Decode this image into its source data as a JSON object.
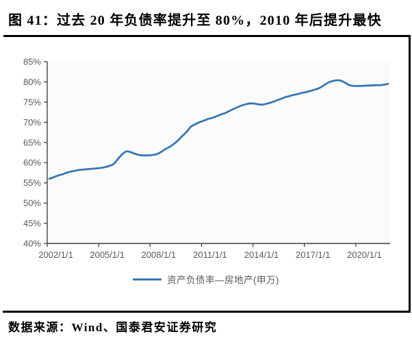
{
  "figure": {
    "title": "图 41：过去 20 年负债率提升至 80%，2010 年后提升最快",
    "source": "数据来源：Wind、国泰君安证券研究"
  },
  "colors": {
    "line": "#3876B4",
    "axis": "#404040",
    "tick_label": "#595959",
    "plot_bg": "#FBFBFB",
    "rule": "#000000"
  },
  "chart_data": {
    "type": "line",
    "title": "",
    "xlabel": "",
    "ylabel": "",
    "ylim": [
      40,
      85
    ],
    "grid": false,
    "legend_position": "bottom",
    "y_ticks": [
      "85%",
      "80%",
      "75%",
      "70%",
      "65%",
      "60%",
      "55%",
      "50%",
      "45%",
      "40%"
    ],
    "y_tick_values": [
      85,
      80,
      75,
      70,
      65,
      60,
      55,
      50,
      45,
      40
    ],
    "x_tick_labels": [
      "2002/1/1",
      "2005/1/1",
      "2008/1/1",
      "2011/1/1",
      "2014/1/1",
      "2017/1/1",
      "2020/1/1"
    ],
    "x_tick_indices": [
      0,
      12,
      24,
      36,
      48,
      60,
      72
    ],
    "x_start_year": 2002,
    "points_per_year": 4,
    "n_points": 80,
    "series": [
      {
        "name": "资产负债率—房地产(申万)",
        "color": "#3876B4",
        "values": [
          56.0,
          56.4,
          56.8,
          57.1,
          57.5,
          57.8,
          58.0,
          58.2,
          58.3,
          58.4,
          58.5,
          58.6,
          58.7,
          58.9,
          59.2,
          59.7,
          60.9,
          62.1,
          62.8,
          62.6,
          62.2,
          61.9,
          61.8,
          61.8,
          61.9,
          62.1,
          62.6,
          63.3,
          63.9,
          64.6,
          65.5,
          66.6,
          67.6,
          68.9,
          69.5,
          70.0,
          70.4,
          70.8,
          71.1,
          71.5,
          71.9,
          72.3,
          72.8,
          73.3,
          73.8,
          74.2,
          74.5,
          74.7,
          74.6,
          74.4,
          74.4,
          74.7,
          75.0,
          75.4,
          75.8,
          76.2,
          76.5,
          76.8,
          77.0,
          77.3,
          77.5,
          77.8,
          78.1,
          78.5,
          79.1,
          79.8,
          80.2,
          80.4,
          80.3,
          79.8,
          79.2,
          79.0,
          79.0,
          79.0,
          79.1,
          79.1,
          79.2,
          79.2,
          79.3,
          79.5
        ]
      }
    ]
  }
}
